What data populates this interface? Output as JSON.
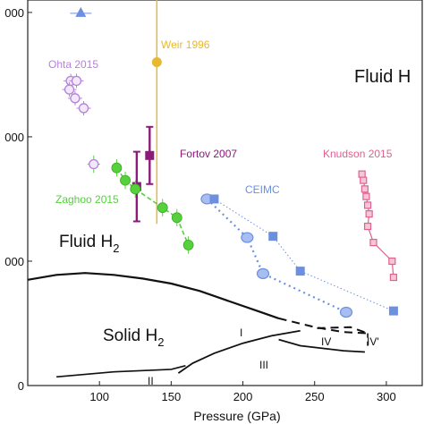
{
  "chart_data": {
    "type": "scatter",
    "xlabel": "Pressure (GPa)",
    "ylabel": "",
    "xlim": [
      50,
      325
    ],
    "ylim": [
      0,
      3100
    ],
    "xticks": [
      100,
      150,
      200,
      250,
      300
    ],
    "yticks": [
      0,
      1000,
      2000,
      3000
    ],
    "ytick_labels": [
      "0",
      "000",
      "000",
      "000"
    ],
    "grid": false,
    "annotations": {
      "fluid_h": "Fluid H",
      "fluid_h2": "Fluid H",
      "fluid_h2_sub": "2",
      "solid_h2": "Solid H",
      "solid_h2_sub": "2",
      "phase_I": "I",
      "phase_II": "II",
      "phase_III": "III",
      "phase_IV": "IV",
      "phase_IVp": "IV'"
    },
    "colors": {
      "weir": "#e8b830",
      "fortov": "#8b1a7a",
      "ohta": "#b483d6",
      "zaghoo": "#55d13c",
      "knudson": "#e06090",
      "ceimc": "#6d8fe0",
      "boundary": "#111111"
    },
    "series": [
      {
        "name": "Weir 1996",
        "label_x": 140,
        "label_y": 2740,
        "color": "#e8b830",
        "marker": "circle",
        "points": [
          {
            "x": 140,
            "y": 2600,
            "yerr": 1300
          }
        ]
      },
      {
        "name": "Fortov 2007",
        "label_x": 146,
        "label_y": 1870,
        "color": "#8b1a7a",
        "marker": "square",
        "points": [
          {
            "x": 135,
            "y": 1850,
            "yerr": 230
          },
          {
            "x": 126,
            "y": 1600,
            "yerr": 280
          }
        ]
      },
      {
        "name": "Ohta 2015",
        "label_x": 58,
        "label_y": 2590,
        "color": "#b483d6",
        "marker": "circle-open",
        "points": [
          {
            "x": 80,
            "y": 2450
          },
          {
            "x": 84,
            "y": 2450
          },
          {
            "x": 83,
            "y": 2310
          },
          {
            "x": 79,
            "y": 2380
          },
          {
            "x": 89,
            "y": 2230
          }
        ]
      },
      {
        "name": "Zaghoo 2015",
        "label_x": 63,
        "label_y": 1510,
        "color": "#55d13c",
        "marker": "circle",
        "points": [
          {
            "x": 96,
            "y": 1780
          },
          {
            "x": 112,
            "y": 1750
          },
          {
            "x": 118,
            "y": 1650
          },
          {
            "x": 125,
            "y": 1580
          },
          {
            "x": 144,
            "y": 1430
          },
          {
            "x": 154,
            "y": 1350
          },
          {
            "x": 162,
            "y": 1130
          }
        ]
      },
      {
        "name": "Knudson 2015",
        "label_x": 241,
        "label_y": 1830,
        "color": "#e06090",
        "marker": "square-open",
        "points": [
          {
            "x": 283,
            "y": 1700
          },
          {
            "x": 284,
            "y": 1650
          },
          {
            "x": 285,
            "y": 1580
          },
          {
            "x": 286,
            "y": 1520
          },
          {
            "x": 287,
            "y": 1450
          },
          {
            "x": 288,
            "y": 1380
          },
          {
            "x": 287,
            "y": 1280
          },
          {
            "x": 291,
            "y": 1150
          },
          {
            "x": 304,
            "y": 1000
          },
          {
            "x": 305,
            "y": 870
          }
        ]
      },
      {
        "name": "CEIMC",
        "label_x": 205,
        "label_y": 1570,
        "color": "#6d8fe0",
        "marker": "mixed",
        "points_circle": [
          {
            "x": 175,
            "y": 1500
          },
          {
            "x": 203,
            "y": 1190
          },
          {
            "x": 214,
            "y": 900
          },
          {
            "x": 272,
            "y": 590
          }
        ],
        "points_square": [
          {
            "x": 180,
            "y": 1500
          },
          {
            "x": 221,
            "y": 1200
          },
          {
            "x": 240,
            "y": 920
          },
          {
            "x": 305,
            "y": 600
          }
        ],
        "top_triangle": {
          "x": 87,
          "y": 3000
        }
      }
    ],
    "phase_lines": {
      "melting_solid": [
        [
          50,
          850
        ],
        [
          70,
          890
        ],
        [
          90,
          905
        ],
        [
          110,
          890
        ],
        [
          130,
          860
        ],
        [
          150,
          820
        ],
        [
          170,
          760
        ],
        [
          190,
          680
        ],
        [
          210,
          600
        ],
        [
          225,
          540
        ]
      ],
      "melting_dashed": [
        [
          225,
          540
        ],
        [
          250,
          470
        ],
        [
          270,
          430
        ],
        [
          287,
          420
        ],
        [
          275,
          470
        ],
        [
          250,
          460
        ]
      ],
      "i_iii_boundary": [
        [
          155,
          100
        ],
        [
          165,
          180
        ],
        [
          180,
          260
        ],
        [
          200,
          340
        ],
        [
          220,
          400
        ],
        [
          240,
          440
        ]
      ],
      "iii_lower": [
        [
          225,
          370
        ],
        [
          240,
          320
        ],
        [
          270,
          280
        ],
        [
          285,
          270
        ]
      ],
      "ii_boundary": [
        [
          70,
          70
        ],
        [
          110,
          110
        ],
        [
          150,
          130
        ],
        [
          160,
          160
        ]
      ]
    }
  }
}
